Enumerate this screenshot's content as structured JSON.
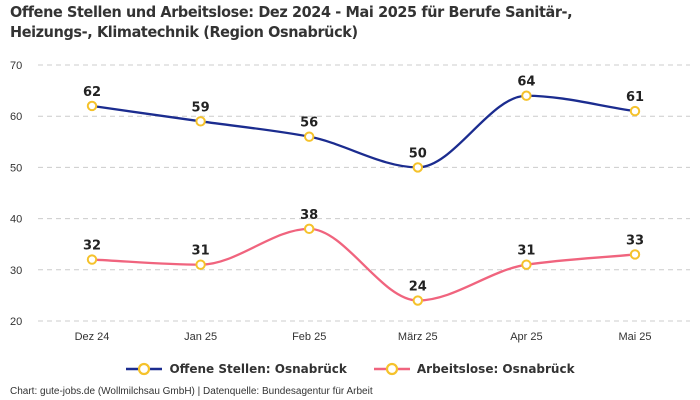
{
  "chart_data": {
    "type": "line",
    "title": "Offene Stellen und Arbeitslose: Dez 2024 - Mai 2025 für Berufe Sanitär-, Heizungs-, Klimatechnik (Region Osnabrück)",
    "xlabel": "",
    "ylabel": "",
    "categories": [
      "Dez 24",
      "Jan 25",
      "Feb 25",
      "März 25",
      "Apr 25",
      "Mai 25"
    ],
    "ylim": [
      20,
      70
    ],
    "yticks": [
      20,
      30,
      40,
      50,
      60,
      70
    ],
    "ytick_labels": [
      "20",
      "30",
      "40",
      "50",
      "60",
      "70"
    ],
    "grid": true,
    "smooth": true,
    "legend_position": "bottom-center",
    "series": [
      {
        "name": "Offene Stellen: Osnabrück",
        "values": [
          62,
          59,
          56,
          50,
          64,
          61
        ],
        "color": "#1b2c8f",
        "marker_color": "#f5c22b"
      },
      {
        "name": "Arbeitslose: Osnabrück",
        "values": [
          32,
          31,
          38,
          24,
          31,
          33
        ],
        "color": "#f0647e",
        "marker_color": "#f5c22b"
      }
    ]
  },
  "footer": {
    "credit": "Chart: gute-jobs.de (Wollmilchsau GmbH) | Datenquelle: Bundesagentur für Arbeit"
  },
  "colors": {
    "grid": "#cccccc",
    "text": "#333333",
    "background": "#ffffff"
  }
}
